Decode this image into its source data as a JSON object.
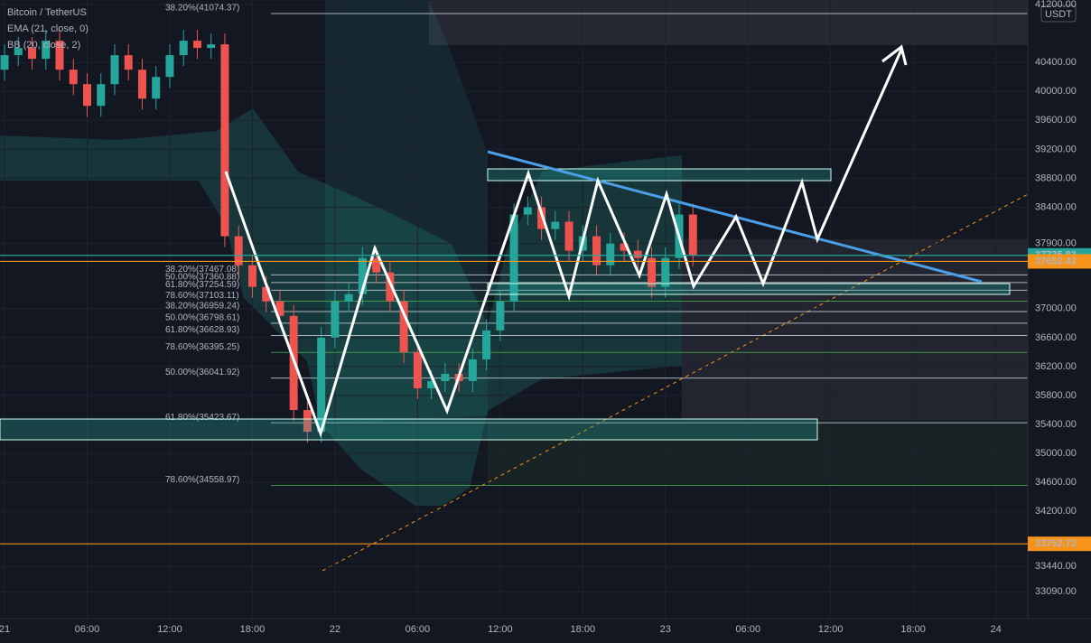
{
  "chart_data": {
    "type": "candlestick",
    "legend": [
      "Bitcoin / TetherUS",
      "EMA (21, close, 0)",
      "BB (20, close, 2)"
    ],
    "currency": "USDT",
    "up_color": "#26a69a",
    "down_color": "#ef5350",
    "x": [
      0,
      1,
      2,
      3,
      4,
      5,
      6,
      7,
      8,
      9,
      10,
      11,
      12,
      13,
      14,
      15,
      16,
      17,
      18,
      19,
      20,
      21,
      22,
      23,
      24,
      25,
      26,
      27,
      28,
      29,
      30,
      31,
      32,
      33,
      34,
      35,
      36,
      37,
      38,
      39,
      40,
      41,
      42,
      43,
      44,
      45,
      46,
      47,
      48,
      49,
      50
    ],
    "open": [
      40300,
      40500,
      40600,
      40450,
      40700,
      40300,
      40100,
      39800,
      40100,
      40500,
      40300,
      39900,
      40200,
      40500,
      40700,
      40600,
      40650,
      38000,
      37600,
      37300,
      37100,
      36900,
      35600,
      35300,
      36600,
      37100,
      37200,
      37700,
      37500,
      37100,
      36400,
      35900,
      36000,
      36100,
      36000,
      36300,
      36700,
      37100,
      38300,
      38400,
      38100,
      38200,
      37800,
      38000,
      37600,
      37900,
      37800,
      37700,
      37300,
      37700,
      38300
    ],
    "high": [
      40650,
      40750,
      40750,
      40850,
      40850,
      40450,
      40250,
      40250,
      40650,
      40650,
      40450,
      40350,
      40650,
      40850,
      40850,
      40800,
      40800,
      38150,
      37750,
      37450,
      37250,
      37050,
      35750,
      36750,
      37250,
      37350,
      37850,
      37850,
      37650,
      37250,
      36550,
      36150,
      36250,
      36250,
      36450,
      36850,
      37250,
      38450,
      38550,
      38550,
      38350,
      38350,
      38150,
      38150,
      38050,
      38050,
      37950,
      37850,
      37850,
      38450,
      38450
    ],
    "low": [
      40150,
      40350,
      40300,
      40300,
      40150,
      39950,
      39650,
      39650,
      39950,
      40150,
      39750,
      39750,
      40050,
      40350,
      40450,
      40450,
      37850,
      37450,
      37150,
      36950,
      36750,
      35450,
      35150,
      35150,
      36450,
      36950,
      37050,
      37350,
      36950,
      36250,
      35750,
      35750,
      35850,
      35850,
      35850,
      36150,
      36550,
      36950,
      38150,
      37950,
      37950,
      37650,
      37650,
      37450,
      37450,
      37650,
      37550,
      37150,
      37150,
      37550,
      37586
    ],
    "close": [
      40500,
      40600,
      40450,
      40700,
      40300,
      40100,
      39800,
      40100,
      40500,
      40300,
      39900,
      40200,
      40500,
      40700,
      40600,
      40650,
      38000,
      37600,
      37300,
      37100,
      36900,
      35600,
      35300,
      36600,
      37100,
      37200,
      37700,
      37500,
      37100,
      36400,
      35900,
      36000,
      36100,
      36000,
      36300,
      36700,
      37100,
      38300,
      38400,
      38100,
      38200,
      37800,
      38000,
      37600,
      37900,
      37800,
      37700,
      37300,
      37700,
      38300,
      37735.83
    ],
    "xlim": [
      -0.33,
      74.32
    ],
    "xticks": [
      {
        "value": 0,
        "label": "21"
      },
      {
        "value": 6,
        "label": "06:00"
      },
      {
        "value": 12,
        "label": "12:00"
      },
      {
        "value": 18,
        "label": "18:00"
      },
      {
        "value": 24,
        "label": "22"
      },
      {
        "value": 30,
        "label": "06:00"
      },
      {
        "value": 36,
        "label": "12:00"
      },
      {
        "value": 42,
        "label": "18:00"
      },
      {
        "value": 48,
        "label": "23"
      },
      {
        "value": 54,
        "label": "06:00"
      },
      {
        "value": 60,
        "label": "12:00"
      },
      {
        "value": 66,
        "label": "18:00"
      },
      {
        "value": 72,
        "label": "24"
      }
    ],
    "ylim": [
      32720,
      41262
    ],
    "yticks": [
      {
        "value": 41200,
        "label": "41200.00"
      },
      {
        "value": 40400,
        "label": "40400.00"
      },
      {
        "value": 40000,
        "label": "40000.00"
      },
      {
        "value": 39600,
        "label": "39600.00"
      },
      {
        "value": 39200,
        "label": "39200.00"
      },
      {
        "value": 38800,
        "label": "38800.00"
      },
      {
        "value": 38400,
        "label": "38400.00"
      },
      {
        "value": 37900,
        "label": "37900.00"
      },
      {
        "value": 37000,
        "label": "37000.00"
      },
      {
        "value": 36600,
        "label": "36600.00"
      },
      {
        "value": 36200,
        "label": "36200.00"
      },
      {
        "value": 35800,
        "label": "35800.00"
      },
      {
        "value": 35400,
        "label": "35400.00"
      },
      {
        "value": 35000,
        "label": "35000.00"
      },
      {
        "value": 34600,
        "label": "34600.00"
      },
      {
        "value": 34200,
        "label": "34200.00"
      },
      {
        "value": 33440,
        "label": "33440.00"
      },
      {
        "value": 33090,
        "label": "33090.00"
      }
    ],
    "price_lines": [
      {
        "value": 37735.83,
        "color": "#26a69a"
      },
      {
        "value": 37652.42,
        "color": "#f7931a"
      },
      {
        "value": 33752.72,
        "color": "#f7931a"
      }
    ],
    "levels": [
      {
        "label": "38.20%(41074.37)",
        "price": 41074.37
      },
      {
        "label": "38.20%(37467.08)",
        "price": 37467.08
      },
      {
        "label": "50.00%(37360.88)",
        "price": 37360.88
      },
      {
        "label": "61.80%(37254.59)",
        "price": 37254.59
      },
      {
        "label": "78.60%(37103.11)",
        "price": 37103.11
      },
      {
        "label": "38.20%(36959.24)",
        "price": 36959.24
      },
      {
        "label": "50.00%(36798.61)",
        "price": 36798.61
      },
      {
        "label": "61.80%(36628.93)",
        "price": 36628.93
      },
      {
        "label": "78.60%(36395.25)",
        "price": 36395.25
      },
      {
        "label": "50.00%(36041.92)",
        "price": 36041.92
      },
      {
        "label": "61.80%(35423.67)",
        "price": 35423.67
      },
      {
        "label": "78.60%(34558.97)",
        "price": 34558.97
      }
    ]
  }
}
